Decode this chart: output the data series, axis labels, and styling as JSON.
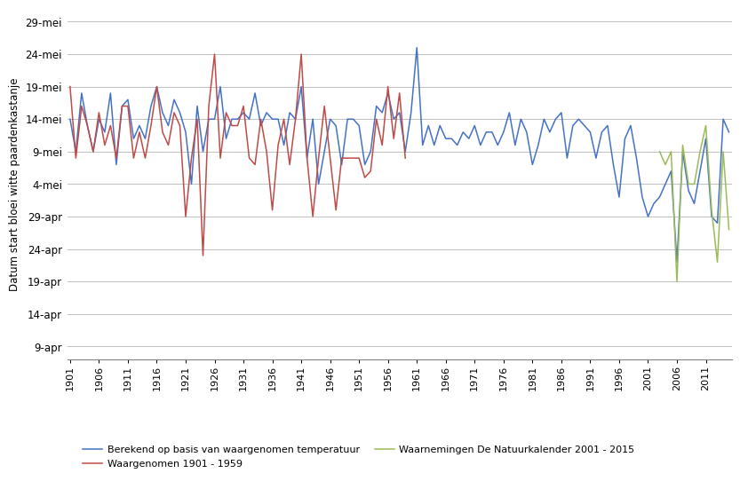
{
  "ylabel": "Datum start bloei witte paardenkastanje",
  "ytick_labels": [
    "9-apr",
    "14-apr",
    "19-apr",
    "24-apr",
    "29-apr",
    "4-mei",
    "9-mei",
    "14-mei",
    "19-mei",
    "24-mei",
    "29-mei"
  ],
  "ytick_days": [
    99,
    104,
    109,
    114,
    119,
    124,
    129,
    134,
    139,
    144,
    149
  ],
  "ylim_min": 97,
  "ylim_max": 151,
  "blue_color": "#4472C4",
  "red_color": "#BE4B48",
  "green_color": "#9BBB59",
  "blue_years": [
    1901,
    1902,
    1903,
    1904,
    1905,
    1906,
    1907,
    1908,
    1909,
    1910,
    1911,
    1912,
    1913,
    1914,
    1915,
    1916,
    1917,
    1918,
    1919,
    1920,
    1921,
    1922,
    1923,
    1924,
    1925,
    1926,
    1927,
    1928,
    1929,
    1930,
    1931,
    1932,
    1933,
    1934,
    1935,
    1936,
    1937,
    1938,
    1939,
    1940,
    1941,
    1942,
    1943,
    1944,
    1945,
    1946,
    1947,
    1948,
    1949,
    1950,
    1951,
    1952,
    1953,
    1954,
    1955,
    1956,
    1957,
    1958,
    1959,
    1960,
    1961,
    1962,
    1963,
    1964,
    1965,
    1966,
    1967,
    1968,
    1969,
    1970,
    1971,
    1972,
    1973,
    1974,
    1975,
    1976,
    1977,
    1978,
    1979,
    1980,
    1981,
    1982,
    1983,
    1984,
    1985,
    1986,
    1987,
    1988,
    1989,
    1990,
    1991,
    1992,
    1993,
    1994,
    1995,
    1996,
    1997,
    1998,
    1999,
    2000,
    2001,
    2002,
    2003,
    2004,
    2005,
    2006,
    2007,
    2008,
    2009,
    2010,
    2011,
    2012,
    2013,
    2014,
    2015
  ],
  "blue_values": [
    134,
    129,
    138,
    133,
    129,
    134,
    132,
    138,
    127,
    136,
    137,
    131,
    133,
    131,
    136,
    139,
    135,
    133,
    137,
    135,
    132,
    124,
    136,
    129,
    134,
    134,
    139,
    131,
    134,
    134,
    135,
    134,
    138,
    133,
    135,
    134,
    134,
    130,
    135,
    134,
    139,
    128,
    134,
    124,
    129,
    134,
    133,
    127,
    134,
    134,
    133,
    127,
    129,
    136,
    135,
    138,
    134,
    135,
    129,
    135,
    145,
    130,
    133,
    130,
    133,
    131,
    131,
    130,
    132,
    131,
    133,
    130,
    132,
    132,
    130,
    132,
    135,
    130,
    134,
    132,
    127,
    130,
    134,
    132,
    134,
    135,
    128,
    133,
    134,
    133,
    132,
    128,
    132,
    133,
    127,
    122,
    131,
    133,
    128,
    122,
    119,
    121,
    122,
    124,
    126,
    112,
    129,
    123,
    121,
    126,
    131,
    119,
    118,
    134,
    132
  ],
  "red_years": [
    1901,
    1902,
    1903,
    1904,
    1905,
    1906,
    1907,
    1908,
    1909,
    1910,
    1911,
    1912,
    1913,
    1914,
    1915,
    1916,
    1917,
    1918,
    1919,
    1920,
    1921,
    1922,
    1923,
    1924,
    1925,
    1926,
    1927,
    1928,
    1929,
    1930,
    1931,
    1932,
    1933,
    1934,
    1935,
    1936,
    1937,
    1938,
    1939,
    1940,
    1941,
    1942,
    1943,
    1944,
    1945,
    1946,
    1947,
    1948,
    1949,
    1950,
    1951,
    1952,
    1953,
    1954,
    1955,
    1956,
    1957,
    1958,
    1959
  ],
  "red_values": [
    139,
    128,
    136,
    133,
    129,
    135,
    130,
    133,
    128,
    136,
    136,
    128,
    132,
    128,
    133,
    139,
    132,
    130,
    135,
    133,
    119,
    128,
    134,
    113,
    136,
    144,
    128,
    135,
    133,
    133,
    136,
    128,
    127,
    134,
    129,
    120,
    130,
    134,
    127,
    134,
    144,
    128,
    119,
    128,
    136,
    128,
    120,
    128,
    128,
    128,
    128,
    125,
    126,
    134,
    130,
    139,
    131,
    138,
    128
  ],
  "green_years": [
    2003,
    2004,
    2005,
    2006,
    2007,
    2008,
    2009,
    2010,
    2011,
    2012,
    2013,
    2014,
    2015
  ],
  "green_values": [
    129,
    127,
    129,
    109,
    130,
    124,
    124,
    129,
    133,
    120,
    112,
    129,
    117
  ],
  "legend_entries": [
    "Berekend op basis van waargenomen temperatuur",
    "Waargenomen 1901 - 1959",
    "Waarnemingen De Natuurkalender 2001 - 2015"
  ],
  "xtick_start": 1901,
  "xtick_end": 2015,
  "xtick_step": 5,
  "xlim_min": 1900.5,
  "xlim_max": 2015.5,
  "bg_color": "#FFFFFF",
  "grid_color": "#C0C0C0",
  "spine_color": "#808080"
}
